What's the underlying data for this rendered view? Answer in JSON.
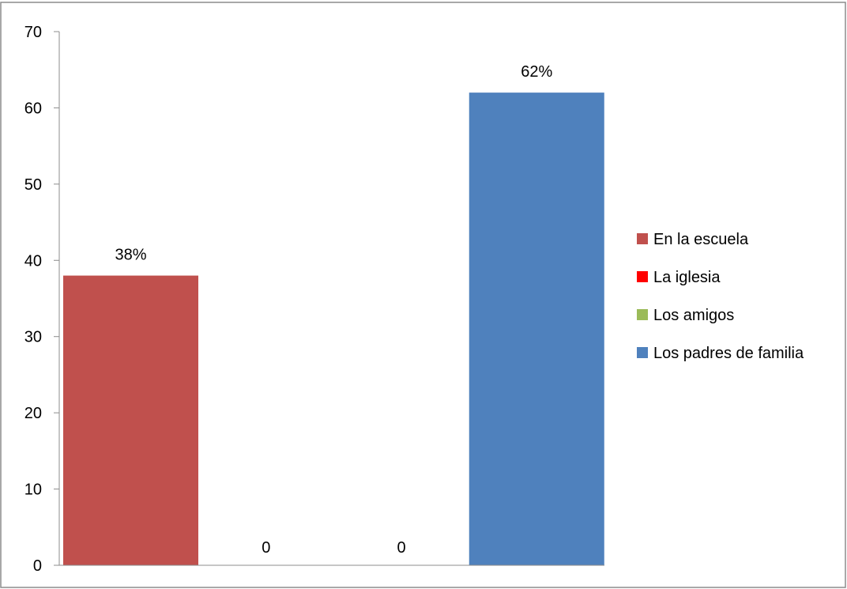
{
  "chart_data": {
    "type": "bar",
    "title": "",
    "xlabel": "",
    "ylabel": "",
    "ylim": [
      0,
      70
    ],
    "yticks": [
      0,
      10,
      20,
      30,
      40,
      50,
      60,
      70
    ],
    "grid": false,
    "legend_position": "right",
    "series": [
      {
        "name": "En la escuela",
        "value": 38,
        "data_label": "38%",
        "color": "#c0504d"
      },
      {
        "name": "La iglesia",
        "value": 0,
        "data_label": "0",
        "color": "#ff0000"
      },
      {
        "name": "Los amigos",
        "value": 0,
        "data_label": "0",
        "color": "#9bbb59"
      },
      {
        "name": "Los padres de familia",
        "value": 62,
        "data_label": "62%",
        "color": "#4f81bd"
      }
    ]
  }
}
